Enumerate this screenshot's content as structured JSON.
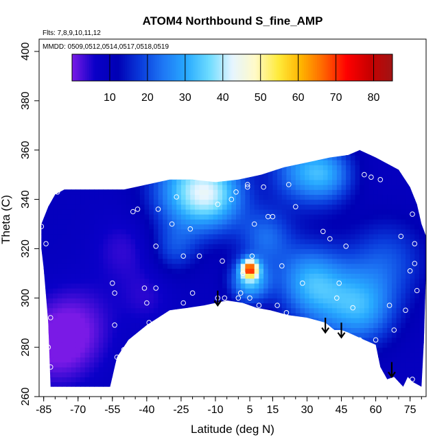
{
  "chart_data": {
    "type": "heatmap",
    "title": "ATOM4 Northbound S_fine_AMP",
    "flights_note": "Flts: 7,8,9,10,11,12",
    "dates_note": "MMDD: 0509,0512,0514,0517,0518,0519",
    "xlabel": "Latitude (deg N)",
    "ylabel": "Theta (C)",
    "xlim": [
      -87,
      82
    ],
    "ylim": [
      260,
      405
    ],
    "x_ticks": [
      -85,
      -70,
      -55,
      -40,
      -25,
      -10,
      5,
      15,
      30,
      45,
      60,
      75
    ],
    "y_ticks": [
      260,
      280,
      300,
      320,
      340,
      360,
      380,
      400
    ],
    "colorbar": {
      "range": [
        0,
        85
      ],
      "ticks": [
        10,
        20,
        30,
        40,
        50,
        60,
        70,
        80
      ],
      "colors": [
        "#7a1ae6",
        "#0a00c8",
        "#0000b4",
        "#0a3cdc",
        "#1e78f5",
        "#28aaff",
        "#6edcff",
        "#e6f5ff",
        "#fffac8",
        "#ffeb3c",
        "#ffb400",
        "#ff6400",
        "#ff0000",
        "#c80000",
        "#a01414"
      ]
    },
    "field_base_value": 9,
    "field_hotspots": [
      {
        "lat": 5,
        "theta": 312,
        "value": 55,
        "spread": 2.5
      },
      {
        "lat": 5,
        "theta": 307,
        "value": 32,
        "spread": 6
      },
      {
        "lat": -22,
        "theta": 344,
        "value": 30,
        "spread": 12
      },
      {
        "lat": -10,
        "theta": 342,
        "value": 28,
        "spread": 10
      },
      {
        "lat": 28,
        "theta": 352,
        "value": 26,
        "spread": 10
      },
      {
        "lat": 40,
        "theta": 350,
        "value": 22,
        "spread": 8
      },
      {
        "lat": 30,
        "theta": 308,
        "value": 24,
        "spread": 10
      },
      {
        "lat": 40,
        "theta": 300,
        "value": 22,
        "spread": 12
      },
      {
        "lat": 55,
        "theta": 295,
        "value": 24,
        "spread": 10
      },
      {
        "lat": 65,
        "theta": 315,
        "value": 20,
        "spread": 12
      },
      {
        "lat": 12,
        "theta": 325,
        "value": 22,
        "spread": 8
      },
      {
        "lat": -28,
        "theta": 320,
        "value": 18,
        "spread": 7
      },
      {
        "lat": -80,
        "theta": 280,
        "value": 1,
        "spread": 12
      },
      {
        "lat": -70,
        "theta": 290,
        "value": 3,
        "spread": 12
      },
      {
        "lat": -50,
        "theta": 320,
        "value": 4,
        "spread": 10
      },
      {
        "lat": -40,
        "theta": 300,
        "value": 5,
        "spread": 8
      }
    ],
    "outline_top": [
      [
        -86,
        330
      ],
      [
        -83,
        337
      ],
      [
        -80,
        342
      ],
      [
        -76,
        344
      ],
      [
        -70,
        344
      ],
      [
        -60,
        344
      ],
      [
        -50,
        344
      ],
      [
        -40,
        346
      ],
      [
        -30,
        348
      ],
      [
        -20,
        348
      ],
      [
        -10,
        347
      ],
      [
        0,
        348
      ],
      [
        10,
        350
      ],
      [
        20,
        353
      ],
      [
        30,
        355
      ],
      [
        40,
        357
      ],
      [
        48,
        358
      ],
      [
        53,
        360
      ],
      [
        60,
        357
      ],
      [
        70,
        352
      ],
      [
        75,
        345
      ],
      [
        78,
        338
      ],
      [
        80,
        330
      ],
      [
        82,
        325
      ]
    ],
    "outline_bottom": [
      [
        82,
        312
      ],
      [
        81,
        282
      ],
      [
        80,
        264
      ],
      [
        76,
        266
      ],
      [
        74,
        268
      ],
      [
        72,
        264
      ],
      [
        68,
        268
      ],
      [
        65,
        267
      ],
      [
        62,
        272
      ],
      [
        60,
        281
      ],
      [
        55,
        283
      ],
      [
        48,
        286
      ],
      [
        45,
        287
      ],
      [
        42,
        287
      ],
      [
        38,
        290
      ],
      [
        30,
        292
      ],
      [
        22,
        293
      ],
      [
        14,
        295
      ],
      [
        8,
        296
      ],
      [
        2,
        298
      ],
      [
        -5,
        299
      ],
      [
        -10,
        298
      ],
      [
        -15,
        297
      ],
      [
        -22,
        296
      ],
      [
        -30,
        295
      ],
      [
        -40,
        289
      ],
      [
        -48,
        283
      ],
      [
        -53,
        276
      ],
      [
        -56,
        264
      ],
      [
        -82,
        264
      ],
      [
        -83,
        290
      ],
      [
        -85,
        312
      ],
      [
        -86,
        320
      ]
    ],
    "sample_points": [
      [
        -86,
        329
      ],
      [
        -84,
        322
      ],
      [
        -82,
        292
      ],
      [
        -83,
        280
      ],
      [
        -82,
        272
      ],
      [
        -79,
        343
      ],
      [
        -55,
        306
      ],
      [
        -54,
        302
      ],
      [
        -54,
        289
      ],
      [
        -53,
        276
      ],
      [
        -50,
        279
      ],
      [
        -46,
        335
      ],
      [
        -44,
        336
      ],
      [
        -41,
        304
      ],
      [
        -40,
        298
      ],
      [
        -39,
        290
      ],
      [
        -36,
        304
      ],
      [
        -35,
        336
      ],
      [
        -36,
        321
      ],
      [
        -29,
        330
      ],
      [
        -27,
        341
      ],
      [
        -24,
        298
      ],
      [
        -24,
        317
      ],
      [
        -21,
        328
      ],
      [
        -20,
        302
      ],
      [
        -17,
        317
      ],
      [
        -9,
        300
      ],
      [
        -9,
        338
      ],
      [
        -7,
        315
      ],
      [
        -6,
        300
      ],
      [
        -3,
        340
      ],
      [
        -1,
        343
      ],
      [
        0,
        300
      ],
      [
        1,
        302
      ],
      [
        2,
        310
      ],
      [
        4,
        345
      ],
      [
        4,
        346
      ],
      [
        5,
        300
      ],
      [
        6,
        317
      ],
      [
        7,
        330
      ],
      [
        9,
        297
      ],
      [
        11,
        345
      ],
      [
        13,
        333
      ],
      [
        15,
        333
      ],
      [
        17,
        297
      ],
      [
        19,
        313
      ],
      [
        21,
        294
      ],
      [
        22,
        346
      ],
      [
        25,
        337
      ],
      [
        28,
        306
      ],
      [
        37,
        327
      ],
      [
        40,
        324
      ],
      [
        43,
        300
      ],
      [
        44,
        306
      ],
      [
        47,
        321
      ],
      [
        50,
        296
      ],
      [
        53,
        283
      ],
      [
        55,
        350
      ],
      [
        58,
        349
      ],
      [
        60,
        283
      ],
      [
        62,
        348
      ],
      [
        66,
        297
      ],
      [
        68,
        287
      ],
      [
        71,
        325
      ],
      [
        73,
        295
      ],
      [
        75,
        311
      ],
      [
        77,
        322
      ],
      [
        77,
        314
      ],
      [
        78,
        303
      ],
      [
        76,
        267
      ],
      [
        76,
        334
      ]
    ],
    "arrows": [
      {
        "lat": -9,
        "theta_top": 303,
        "theta_tip": 297
      },
      {
        "lat": 38,
        "theta_top": 292,
        "theta_tip": 286
      },
      {
        "lat": 45,
        "theta_top": 290,
        "theta_tip": 284
      },
      {
        "lat": 67,
        "theta_top": 274,
        "theta_tip": 268
      }
    ]
  }
}
